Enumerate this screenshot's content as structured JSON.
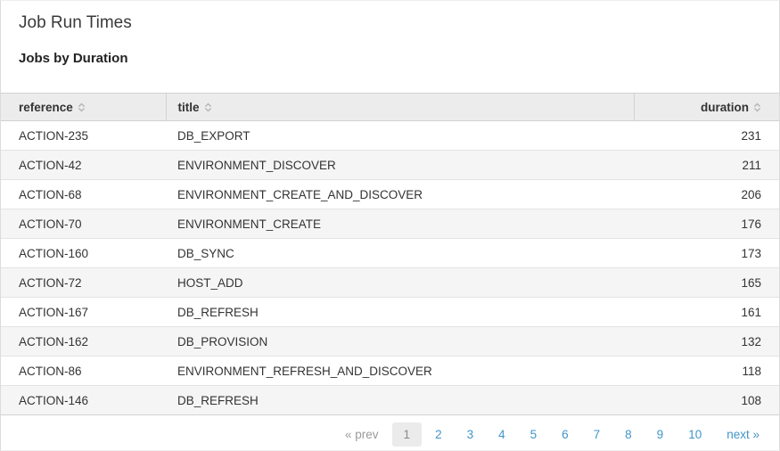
{
  "page": {
    "title": "Job Run Times",
    "subtitle": "Jobs by Duration"
  },
  "table": {
    "columns": [
      {
        "label": "reference",
        "align": "left"
      },
      {
        "label": "title",
        "align": "left"
      },
      {
        "label": "duration",
        "align": "right"
      }
    ],
    "rows": [
      {
        "reference": "ACTION-235",
        "title": "DB_EXPORT",
        "duration": "231"
      },
      {
        "reference": "ACTION-42",
        "title": "ENVIRONMENT_DISCOVER",
        "duration": "211"
      },
      {
        "reference": "ACTION-68",
        "title": "ENVIRONMENT_CREATE_AND_DISCOVER",
        "duration": "206"
      },
      {
        "reference": "ACTION-70",
        "title": "ENVIRONMENT_CREATE",
        "duration": "176"
      },
      {
        "reference": "ACTION-160",
        "title": "DB_SYNC",
        "duration": "173"
      },
      {
        "reference": "ACTION-72",
        "title": "HOST_ADD",
        "duration": "165"
      },
      {
        "reference": "ACTION-167",
        "title": "DB_REFRESH",
        "duration": "161"
      },
      {
        "reference": "ACTION-162",
        "title": "DB_PROVISION",
        "duration": "132"
      },
      {
        "reference": "ACTION-86",
        "title": "ENVIRONMENT_REFRESH_AND_DISCOVER",
        "duration": "118"
      },
      {
        "reference": "ACTION-146",
        "title": "DB_REFRESH",
        "duration": "108"
      }
    ]
  },
  "pagination": {
    "prev_label": "« prev",
    "next_label": "next »",
    "pages": [
      "1",
      "2",
      "3",
      "4",
      "5",
      "6",
      "7",
      "8",
      "9",
      "10"
    ],
    "current_page": "1"
  },
  "icons": {
    "sort": "sort-toggle-icon"
  },
  "colors": {
    "link_blue": "#4295c8",
    "header_bg": "#ececec",
    "row_alt_bg": "#f5f5f5",
    "hard_border": "#d2d2d2",
    "row_border": "#e3e3e3",
    "outer_border": "#dcdcdc",
    "text": "#333333",
    "muted": "#9b9b9b",
    "active_page_bg": "#ebebeb",
    "sort_icon": "#b5b5b5"
  }
}
